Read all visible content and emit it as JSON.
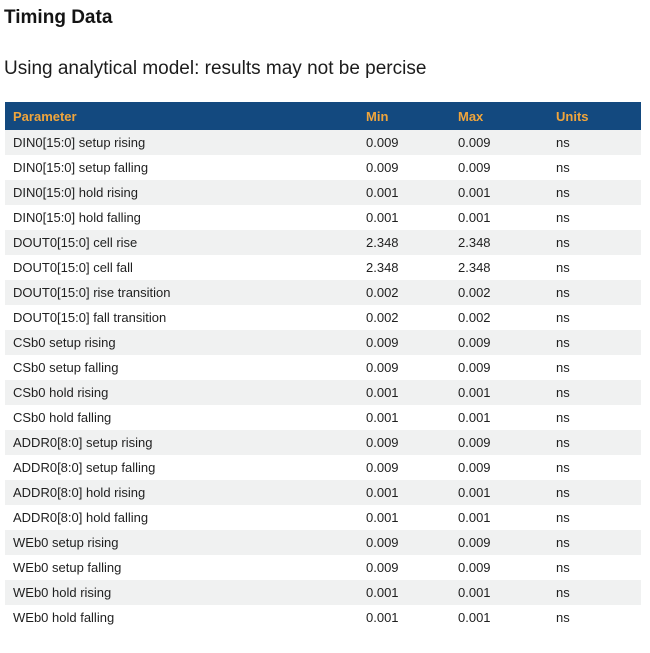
{
  "page": {
    "title": "Timing Data",
    "subtitle": "Using analytical model: results may not be percise"
  },
  "table": {
    "columns": [
      "Parameter",
      "Min",
      "Max",
      "Units"
    ],
    "rows": [
      {
        "parameter": "DIN0[15:0] setup rising",
        "min": "0.009",
        "max": "0.009",
        "units": "ns"
      },
      {
        "parameter": "DIN0[15:0] setup falling",
        "min": "0.009",
        "max": "0.009",
        "units": "ns"
      },
      {
        "parameter": "DIN0[15:0] hold rising",
        "min": "0.001",
        "max": "0.001",
        "units": "ns"
      },
      {
        "parameter": "DIN0[15:0] hold falling",
        "min": "0.001",
        "max": "0.001",
        "units": "ns"
      },
      {
        "parameter": "DOUT0[15:0] cell rise",
        "min": "2.348",
        "max": "2.348",
        "units": "ns"
      },
      {
        "parameter": "DOUT0[15:0] cell fall",
        "min": "2.348",
        "max": "2.348",
        "units": "ns"
      },
      {
        "parameter": "DOUT0[15:0] rise transition",
        "min": "0.002",
        "max": "0.002",
        "units": "ns"
      },
      {
        "parameter": "DOUT0[15:0] fall transition",
        "min": "0.002",
        "max": "0.002",
        "units": "ns"
      },
      {
        "parameter": "CSb0 setup rising",
        "min": "0.009",
        "max": "0.009",
        "units": "ns"
      },
      {
        "parameter": "CSb0 setup falling",
        "min": "0.009",
        "max": "0.009",
        "units": "ns"
      },
      {
        "parameter": "CSb0 hold rising",
        "min": "0.001",
        "max": "0.001",
        "units": "ns"
      },
      {
        "parameter": "CSb0 hold falling",
        "min": "0.001",
        "max": "0.001",
        "units": "ns"
      },
      {
        "parameter": "ADDR0[8:0] setup rising",
        "min": "0.009",
        "max": "0.009",
        "units": "ns"
      },
      {
        "parameter": "ADDR0[8:0] setup falling",
        "min": "0.009",
        "max": "0.009",
        "units": "ns"
      },
      {
        "parameter": "ADDR0[8:0] hold rising",
        "min": "0.001",
        "max": "0.001",
        "units": "ns"
      },
      {
        "parameter": "ADDR0[8:0] hold falling",
        "min": "0.001",
        "max": "0.001",
        "units": "ns"
      },
      {
        "parameter": "WEb0 setup rising",
        "min": "0.009",
        "max": "0.009",
        "units": "ns"
      },
      {
        "parameter": "WEb0 setup falling",
        "min": "0.009",
        "max": "0.009",
        "units": "ns"
      },
      {
        "parameter": "WEb0 hold rising",
        "min": "0.001",
        "max": "0.001",
        "units": "ns"
      },
      {
        "parameter": "WEb0 hold falling",
        "min": "0.001",
        "max": "0.001",
        "units": "ns"
      }
    ]
  },
  "theme": {
    "header_bg": "#13497f",
    "header_text": "#f0a53c",
    "row_alt_bg": "#f0f1f1",
    "body_text": "#1f1f1f"
  }
}
